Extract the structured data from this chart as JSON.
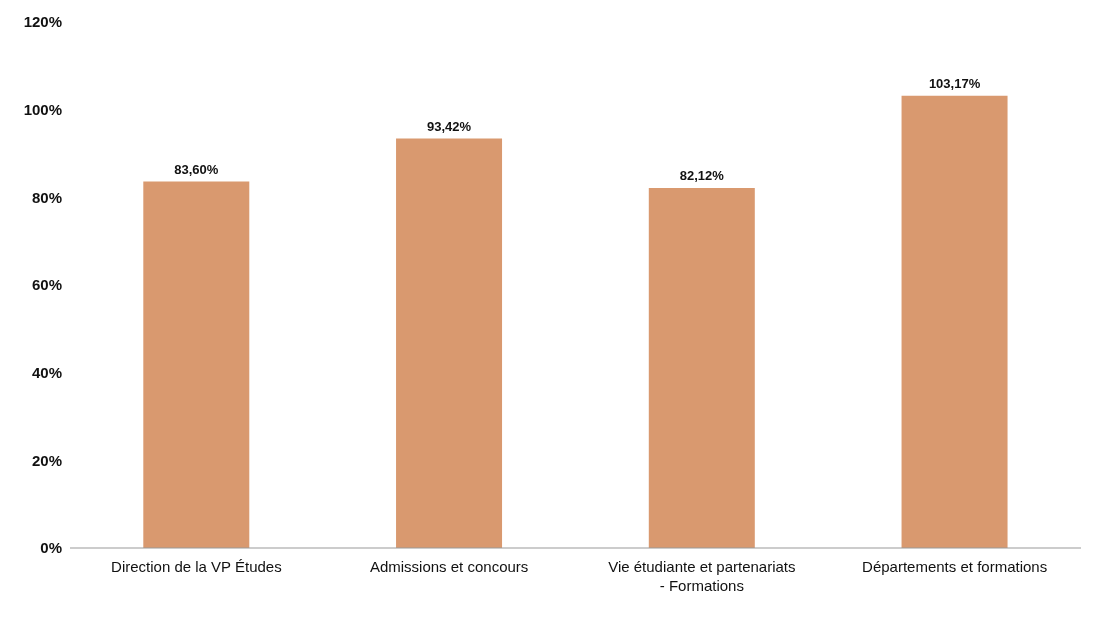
{
  "chart_data": {
    "type": "bar",
    "categories": [
      "Direction de la VP Études",
      "Admissions et concours",
      "Vie étudiante et partenariats - Formations",
      "Départements et formations"
    ],
    "values": [
      83.6,
      93.42,
      82.12,
      103.17
    ],
    "value_labels": [
      "83,60%",
      "93,42%",
      "82,12%",
      "103,17%"
    ],
    "color": "#d9996f",
    "ylim": [
      0,
      120
    ],
    "yticks": [
      {
        "value": 0,
        "label": "0%"
      },
      {
        "value": 20,
        "label": "20%"
      },
      {
        "value": 40,
        "label": "40%"
      },
      {
        "value": 60,
        "label": "60%"
      },
      {
        "value": 80,
        "label": "80%"
      },
      {
        "value": 100,
        "label": "100%"
      },
      {
        "value": 120,
        "label": "120%"
      }
    ],
    "grid": false,
    "legend": false
  }
}
